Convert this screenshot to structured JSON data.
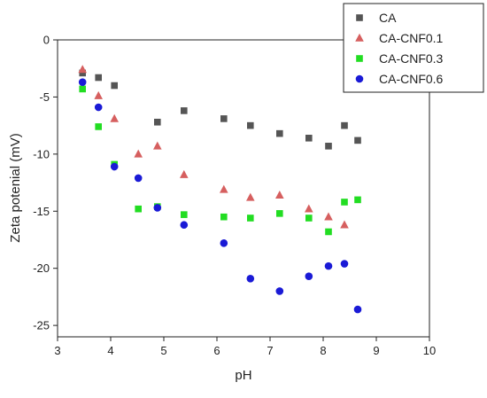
{
  "chart_data": {
    "type": "scatter",
    "xlabel": "pH",
    "ylabel": "Zeta potenial (mV)",
    "xlim": [
      3,
      10
    ],
    "ylim": [
      -26,
      0
    ],
    "xticks": [
      "3",
      "4",
      "5",
      "6",
      "7",
      "8",
      "9",
      "10"
    ],
    "yticks": [
      "0",
      "-5",
      "-10",
      "-15",
      "-20",
      "-25"
    ],
    "grid": false,
    "legend_position": "top-right",
    "series": [
      {
        "name": "CA",
        "marker": "square",
        "color": "#555555",
        "x": [
          3.47,
          3.77,
          4.07,
          4.88,
          5.38,
          6.13,
          6.63,
          7.18,
          7.73,
          8.1,
          8.4,
          8.65
        ],
        "y": [
          -2.9,
          -3.3,
          -4.0,
          -7.2,
          -6.2,
          -6.9,
          -7.5,
          -8.2,
          -8.6,
          -9.3,
          -7.5,
          -8.8
        ]
      },
      {
        "name": "CA-CNF0.1",
        "marker": "triangle",
        "color": "#d65f5f",
        "x": [
          3.47,
          3.77,
          4.07,
          4.52,
          4.88,
          5.38,
          6.13,
          6.63,
          7.18,
          7.73,
          8.1,
          8.4
        ],
        "y": [
          -2.6,
          -4.9,
          -6.9,
          -10.0,
          -9.3,
          -11.8,
          -13.1,
          -13.8,
          -13.6,
          -14.8,
          -15.5,
          -16.2
        ]
      },
      {
        "name": "CA-CNF0.3",
        "marker": "square",
        "color": "#22dd22",
        "x": [
          3.47,
          3.77,
          4.07,
          4.52,
          4.88,
          5.38,
          6.13,
          6.63,
          7.18,
          7.73,
          8.1,
          8.4,
          8.65
        ],
        "y": [
          -4.3,
          -7.6,
          -10.9,
          -14.8,
          -14.6,
          -15.3,
          -15.5,
          -15.6,
          -15.2,
          -15.6,
          -16.8,
          -14.2,
          -14.0
        ]
      },
      {
        "name": "CA-CNF0.6",
        "marker": "circle",
        "color": "#1a1ad6",
        "x": [
          3.47,
          3.77,
          4.07,
          4.52,
          4.88,
          5.38,
          6.13,
          6.63,
          7.18,
          7.73,
          8.1,
          8.4,
          8.65
        ],
        "y": [
          -3.7,
          -5.9,
          -11.1,
          -12.1,
          -14.7,
          -16.2,
          -17.8,
          -20.9,
          -22.0,
          -20.7,
          -19.8,
          -19.6,
          -23.6
        ]
      }
    ]
  }
}
